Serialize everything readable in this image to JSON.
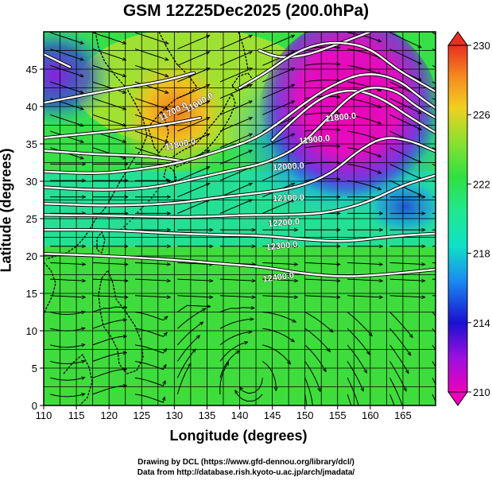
{
  "title": "GSM 12Z25Dec2025 (200.0hPa)",
  "xlabel": "Longitude (degrees)",
  "ylabel": "Latitude  (degrees)",
  "credits": [
    "Drawing by DCL (https://www.gfd-dennou.org/library/dcl/)",
    "Data from http://database.rish.kyoto-u.ac.jp/arch/jmadata/"
  ],
  "map": {
    "lon_range": [
      110,
      170
    ],
    "lat_range": [
      0,
      50
    ],
    "x_ticks": [
      110,
      115,
      120,
      125,
      130,
      135,
      140,
      145,
      150,
      155,
      160,
      165
    ],
    "y_ticks": [
      0,
      5,
      10,
      15,
      20,
      25,
      30,
      35,
      40,
      45
    ],
    "grid_lon_step": 2.5,
    "grid_lat_step": 2.5
  },
  "colorbar": {
    "min": 210,
    "max": 230,
    "tick_values": [
      210,
      214,
      218,
      222,
      226,
      230
    ],
    "tick_labels": [
      "210",
      "214",
      "218",
      "222",
      "226",
      "230"
    ]
  },
  "contours": [
    {
      "value": 11800,
      "label": "11800.0",
      "points": [
        [
          132,
          32.6
        ],
        [
          127,
          33.3
        ],
        [
          122,
          33.5
        ],
        [
          118,
          33.6
        ],
        [
          110,
          34.1
        ]
      ]
    },
    {
      "value": 11800,
      "label": "11800.0",
      "points": [
        [
          145,
          35.5
        ],
        [
          148,
          38
        ],
        [
          151,
          40.3
        ],
        [
          154,
          41.8
        ],
        [
          158,
          42.3
        ],
        [
          162,
          41
        ],
        [
          166,
          38.6
        ],
        [
          170,
          36.5
        ]
      ]
    },
    {
      "value": 11900,
      "label": "11900.0",
      "points": [
        [
          110,
          31.3
        ],
        [
          118,
          31
        ],
        [
          124,
          31.5
        ],
        [
          130,
          32.3
        ],
        [
          136,
          33.8
        ],
        [
          142,
          35.5
        ],
        [
          146,
          37.8
        ],
        [
          150,
          40.5
        ],
        [
          154,
          42.8
        ],
        [
          159,
          44.6
        ],
        [
          164,
          43.8
        ],
        [
          168,
          41
        ],
        [
          170,
          39.8
        ]
      ]
    },
    {
      "value": 12000,
      "label": "12000.0",
      "points": [
        [
          110,
          29.2
        ],
        [
          118,
          28.8
        ],
        [
          126,
          29
        ],
        [
          133,
          30.3
        ],
        [
          139,
          31.5
        ],
        [
          144,
          32.4
        ],
        [
          149,
          34.5
        ],
        [
          153,
          38
        ],
        [
          157,
          41.5
        ],
        [
          160,
          42.7
        ],
        [
          164,
          42.2
        ],
        [
          167,
          40
        ],
        [
          170,
          38.5
        ]
      ]
    },
    {
      "value": 12100,
      "label": "12100.0",
      "points": [
        [
          110,
          27
        ],
        [
          120,
          26.7
        ],
        [
          130,
          27
        ],
        [
          137,
          27.9
        ],
        [
          143,
          28.4
        ],
        [
          149,
          29.2
        ],
        [
          154,
          31
        ],
        [
          158,
          34
        ],
        [
          162,
          36
        ],
        [
          166,
          35.5
        ],
        [
          170,
          34
        ]
      ]
    },
    {
      "value": 12200,
      "label": "12200.0",
      "points": [
        [
          110,
          25.5
        ],
        [
          120,
          25.4
        ],
        [
          130,
          25.2
        ],
        [
          136,
          25.3
        ],
        [
          141,
          25.5
        ],
        [
          148,
          25.5
        ],
        [
          154,
          25.8
        ],
        [
          160,
          27.3
        ],
        [
          165,
          29.5
        ],
        [
          170,
          30.8
        ]
      ]
    },
    {
      "value": 12300,
      "label": "12300.0",
      "points": [
        [
          110,
          23.5
        ],
        [
          120,
          23.5
        ],
        [
          130,
          23
        ],
        [
          138,
          22.8
        ],
        [
          144,
          22.7
        ],
        [
          150,
          22.2
        ],
        [
          156,
          21.9
        ],
        [
          162,
          22.5
        ],
        [
          166,
          22.8
        ],
        [
          170,
          23
        ]
      ]
    },
    {
      "value": 12400,
      "label": "12400.0",
      "points": [
        [
          110,
          20.3
        ],
        [
          120,
          20
        ],
        [
          130,
          19.5
        ],
        [
          138,
          18.9
        ],
        [
          144,
          18.5
        ],
        [
          150,
          17.6
        ],
        [
          156,
          17.2
        ],
        [
          162,
          17.5
        ],
        [
          170,
          18.2
        ]
      ]
    },
    {
      "value": 11700,
      "label": "11700.0",
      "points": [
        [
          110,
          35.8
        ],
        [
          118,
          36.5
        ],
        [
          124,
          37
        ],
        [
          130,
          37.8
        ],
        [
          134,
          38.5
        ]
      ]
    },
    {
      "value": 11600,
      "label": "11600.0",
      "points": [
        [
          110,
          40.5
        ],
        [
          116,
          41.5
        ],
        [
          122,
          42.5
        ],
        [
          128,
          43.3
        ],
        [
          133,
          44.5
        ]
      ]
    },
    {
      "value": 11600,
      "label": "11600.0",
      "points": [
        [
          110,
          47
        ],
        [
          114,
          45.3
        ]
      ]
    },
    {
      "value": 11600,
      "label": "11600.0",
      "points": [
        [
          143,
          47.5
        ],
        [
          146,
          46.5
        ],
        [
          150,
          46.8
        ],
        [
          154,
          48
        ],
        [
          160,
          50
        ]
      ]
    },
    {
      "value": 11700,
      "label": "11700.0",
      "points": [
        [
          140,
          42.5
        ],
        [
          144,
          44.5
        ],
        [
          148,
          47
        ],
        [
          152,
          48.4
        ],
        [
          156,
          48.6
        ],
        [
          160,
          47.8
        ],
        [
          164,
          45
        ],
        [
          168,
          43
        ],
        [
          170,
          42
        ]
      ]
    }
  ]
}
